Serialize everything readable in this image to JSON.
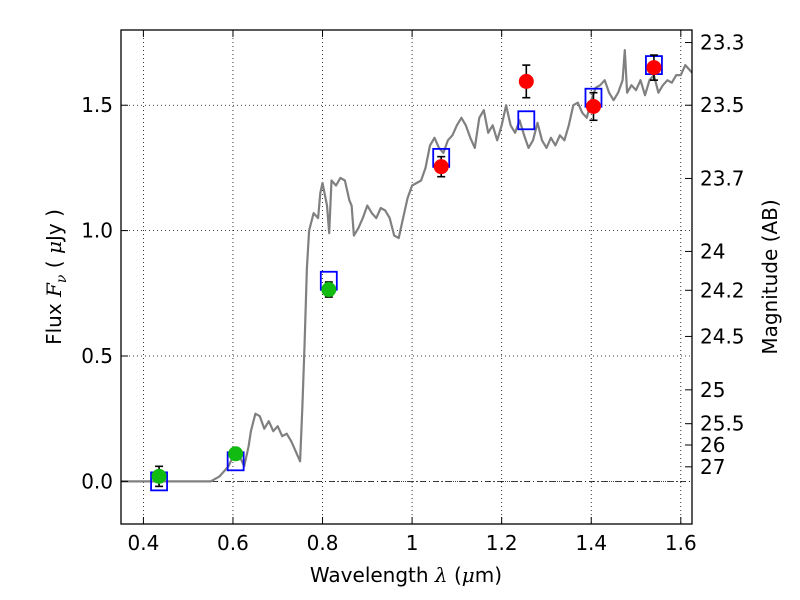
{
  "chart_data": {
    "type": "scatter",
    "xlabel": "Wavelength  λ (μm)",
    "ylabel": "Flux  Fν  ( μJy )",
    "ylabel_right": "Magnitude (AB)",
    "xlim": [
      0.35,
      1.625
    ],
    "ylim": [
      -0.17,
      1.8
    ],
    "grid": true,
    "x_ticks": [
      0.4,
      0.6,
      0.8,
      1.0,
      1.2,
      1.4,
      1.6
    ],
    "x_tick_labels": [
      "0.4",
      "0.6",
      "0.8",
      "1",
      "1.2",
      "1.4",
      "1.6"
    ],
    "y_ticks": [
      0.0,
      0.5,
      1.0,
      1.5
    ],
    "y_tick_labels": [
      "0.0",
      "0.5",
      "1.0",
      "1.5"
    ],
    "magnitude_ticks": [
      {
        "label": "23.3",
        "flux": 1.75
      },
      {
        "label": "23.5",
        "flux": 1.5
      },
      {
        "label": "23.7",
        "flux": 1.208
      },
      {
        "label": "24",
        "flux": 0.917
      },
      {
        "label": "24.2",
        "flux": 0.762
      },
      {
        "label": "24.5",
        "flux": 0.578
      },
      {
        "label": "25",
        "flux": 0.365
      },
      {
        "label": "25.5",
        "flux": 0.23
      },
      {
        "label": "26",
        "flux": 0.145
      },
      {
        "label": "27",
        "flux": 0.058
      }
    ],
    "colors": {
      "optical": "#11bb11",
      "nir": "#ff0000",
      "model": "#0000ff",
      "sed": "#808080"
    },
    "series": [
      {
        "kind": "model_points",
        "marker": "open-square",
        "x": [
          0.435,
          0.606,
          0.814,
          1.065,
          1.255,
          1.405,
          1.54
        ],
        "y": [
          0.0,
          0.08,
          0.8,
          1.29,
          1.44,
          1.53,
          1.66
        ]
      },
      {
        "kind": "optical_photometry",
        "marker": "filled-circle",
        "x": [
          0.435,
          0.606,
          0.814
        ],
        "y": [
          0.02,
          0.11,
          0.765
        ],
        "err": [
          0.04,
          0.02,
          0.03
        ]
      },
      {
        "kind": "nir_photometry",
        "marker": "filled-circle",
        "x": [
          1.065,
          1.255,
          1.405,
          1.54
        ],
        "y": [
          1.255,
          1.595,
          1.495,
          1.65
        ],
        "err": [
          0.04,
          0.065,
          0.055,
          0.05
        ]
      },
      {
        "kind": "sed_template",
        "marker": "line",
        "x": [
          0.35,
          0.55,
          0.57,
          0.59,
          0.6,
          0.61,
          0.625,
          0.635,
          0.64,
          0.65,
          0.66,
          0.67,
          0.68,
          0.69,
          0.7,
          0.71,
          0.72,
          0.73,
          0.74,
          0.75,
          0.755,
          0.76,
          0.765,
          0.77,
          0.78,
          0.79,
          0.795,
          0.8,
          0.81,
          0.815,
          0.82,
          0.83,
          0.84,
          0.85,
          0.86,
          0.865,
          0.87,
          0.88,
          0.89,
          0.9,
          0.91,
          0.92,
          0.93,
          0.94,
          0.95,
          0.96,
          0.97,
          0.98,
          0.99,
          1.0,
          1.01,
          1.02,
          1.03,
          1.04,
          1.05,
          1.06,
          1.07,
          1.08,
          1.09,
          1.1,
          1.11,
          1.12,
          1.13,
          1.14,
          1.15,
          1.16,
          1.17,
          1.18,
          1.19,
          1.2,
          1.21,
          1.22,
          1.23,
          1.24,
          1.25,
          1.26,
          1.27,
          1.28,
          1.29,
          1.3,
          1.31,
          1.32,
          1.33,
          1.34,
          1.35,
          1.36,
          1.37,
          1.38,
          1.39,
          1.4,
          1.41,
          1.42,
          1.43,
          1.44,
          1.45,
          1.46,
          1.47,
          1.475,
          1.48,
          1.49,
          1.5,
          1.51,
          1.52,
          1.53,
          1.54,
          1.55,
          1.56,
          1.57,
          1.58,
          1.59,
          1.6,
          1.61,
          1.625
        ],
        "y": [
          0.0,
          0.0,
          0.02,
          0.06,
          0.1,
          0.12,
          0.06,
          0.14,
          0.2,
          0.27,
          0.26,
          0.21,
          0.24,
          0.2,
          0.22,
          0.18,
          0.19,
          0.16,
          0.12,
          0.08,
          0.3,
          0.55,
          0.85,
          1.0,
          1.07,
          1.05,
          1.15,
          1.19,
          1.1,
          0.99,
          1.2,
          1.18,
          1.21,
          1.2,
          1.12,
          1.1,
          0.98,
          1.01,
          1.05,
          1.1,
          1.07,
          1.05,
          1.09,
          1.08,
          1.05,
          0.98,
          0.97,
          1.05,
          1.13,
          1.18,
          1.19,
          1.2,
          1.25,
          1.34,
          1.37,
          1.33,
          1.31,
          1.36,
          1.38,
          1.42,
          1.45,
          1.42,
          1.37,
          1.33,
          1.45,
          1.48,
          1.39,
          1.42,
          1.36,
          1.42,
          1.5,
          1.42,
          1.39,
          1.44,
          1.38,
          1.33,
          1.36,
          1.43,
          1.36,
          1.33,
          1.37,
          1.34,
          1.38,
          1.36,
          1.42,
          1.5,
          1.51,
          1.47,
          1.45,
          1.52,
          1.57,
          1.58,
          1.6,
          1.55,
          1.52,
          1.55,
          1.6,
          1.72,
          1.55,
          1.58,
          1.56,
          1.6,
          1.54,
          1.6,
          1.62,
          1.55,
          1.58,
          1.6,
          1.59,
          1.62,
          1.62,
          1.66,
          1.63
        ]
      }
    ]
  }
}
